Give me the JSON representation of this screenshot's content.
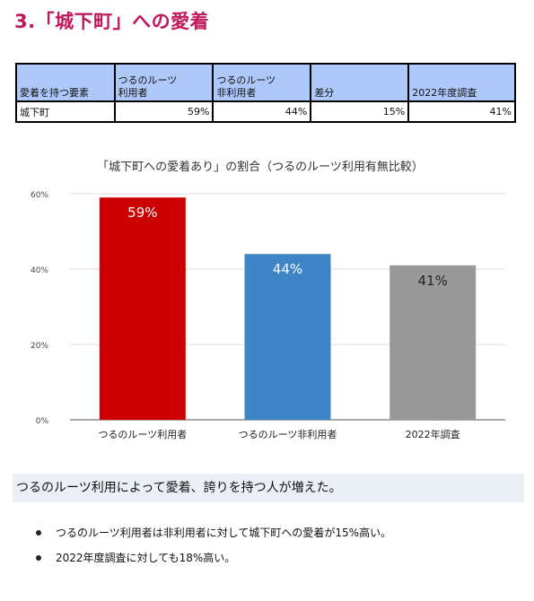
{
  "heading": "3.「城下町」への愛着",
  "table": {
    "headers": [
      "愛着を持つ要素",
      "つるのルーツ\n利用者",
      "つるのルーツ\n非利用者",
      "差分",
      "2022年度調査"
    ],
    "rows": [
      [
        "城下町",
        "59%",
        "44%",
        "15%",
        "41%"
      ]
    ]
  },
  "chart_data": {
    "type": "bar",
    "title": "「城下町への愛着あり」の割合（つるのルーツ利用有無比較）",
    "categories": [
      "つるのルーツ利用者",
      "つるのルーツ非利用者",
      "2022年調査"
    ],
    "values": [
      59,
      44,
      41
    ],
    "data_labels": [
      "59%",
      "44%",
      "41%"
    ],
    "colors": [
      "#cc0000",
      "#3d85c6",
      "#999999"
    ],
    "label_colors": [
      "#ffffff",
      "#ffffff",
      "#222222"
    ],
    "ylim": [
      0,
      60
    ],
    "yticks": [
      0,
      20,
      40,
      60
    ],
    "ytick_labels": [
      "0%",
      "20%",
      "40%",
      "60%"
    ],
    "grid": true,
    "xlabel": "",
    "ylabel": ""
  },
  "conclusion": "つるのルーツ利用によって愛着、誇りを持つ人が増えた。",
  "bullets": [
    "つるのルーツ利用者は非利用者に対して城下町への愛着が15%高い。",
    "2022年度調査に対しても18%高い。"
  ]
}
